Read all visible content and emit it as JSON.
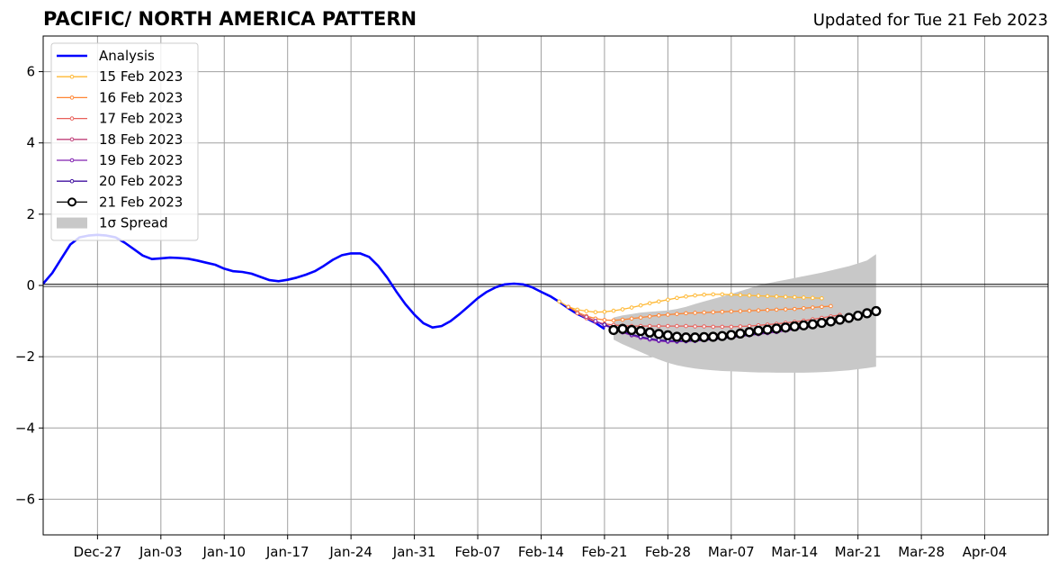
{
  "title": "PACIFIC/ NORTH AMERICA PATTERN",
  "subtitle": "Updated for Tue 21 Feb 2023",
  "chart_data": {
    "type": "line",
    "x_start": "2022-12-21",
    "xlim": [
      "2022-12-21",
      "2023-04-11"
    ],
    "ylim": [
      -7,
      7
    ],
    "grid": true,
    "legend_position": "top-left",
    "xticks": [
      "Dec-27",
      "Jan-03",
      "Jan-10",
      "Jan-17",
      "Jan-24",
      "Jan-31",
      "Feb-07",
      "Feb-14",
      "Feb-21",
      "Feb-28",
      "Mar-07",
      "Mar-14",
      "Mar-21",
      "Mar-28",
      "Apr-04"
    ],
    "yticks": [
      -6,
      -4,
      -2,
      0,
      2,
      4,
      6
    ],
    "ytick_labels": [
      "−6",
      "−4",
      "−2",
      "0",
      "2",
      "4",
      "6"
    ],
    "analysis": {
      "name": "Analysis",
      "color": "#0000ff",
      "points": [
        [
          "2022-12-21",
          0.05
        ],
        [
          "2022-12-22",
          0.35
        ],
        [
          "2022-12-23",
          0.75
        ],
        [
          "2022-12-24",
          1.15
        ],
        [
          "2022-12-25",
          1.35
        ],
        [
          "2022-12-26",
          1.4
        ],
        [
          "2022-12-27",
          1.42
        ],
        [
          "2022-12-28",
          1.4
        ],
        [
          "2022-12-29",
          1.35
        ],
        [
          "2022-12-30",
          1.2
        ],
        [
          "2022-12-31",
          1.02
        ],
        [
          "2023-01-01",
          0.84
        ],
        [
          "2023-01-02",
          0.74
        ],
        [
          "2023-01-03",
          0.76
        ],
        [
          "2023-01-04",
          0.78
        ],
        [
          "2023-01-05",
          0.77
        ],
        [
          "2023-01-06",
          0.75
        ],
        [
          "2023-01-07",
          0.7
        ],
        [
          "2023-01-08",
          0.64
        ],
        [
          "2023-01-09",
          0.58
        ],
        [
          "2023-01-10",
          0.47
        ],
        [
          "2023-01-11",
          0.4
        ],
        [
          "2023-01-12",
          0.38
        ],
        [
          "2023-01-13",
          0.33
        ],
        [
          "2023-01-14",
          0.24
        ],
        [
          "2023-01-15",
          0.15
        ],
        [
          "2023-01-16",
          0.12
        ],
        [
          "2023-01-17",
          0.16
        ],
        [
          "2023-01-18",
          0.22
        ],
        [
          "2023-01-19",
          0.3
        ],
        [
          "2023-01-20",
          0.4
        ],
        [
          "2023-01-21",
          0.55
        ],
        [
          "2023-01-22",
          0.72
        ],
        [
          "2023-01-23",
          0.85
        ],
        [
          "2023-01-24",
          0.9
        ],
        [
          "2023-01-25",
          0.9
        ],
        [
          "2023-01-26",
          0.8
        ],
        [
          "2023-01-27",
          0.55
        ],
        [
          "2023-01-28",
          0.22
        ],
        [
          "2023-01-29",
          -0.17
        ],
        [
          "2023-01-30",
          -0.52
        ],
        [
          "2023-01-31",
          -0.82
        ],
        [
          "2023-02-01",
          -1.06
        ],
        [
          "2023-02-02",
          -1.18
        ],
        [
          "2023-02-03",
          -1.14
        ],
        [
          "2023-02-04",
          -1.0
        ],
        [
          "2023-02-05",
          -0.8
        ],
        [
          "2023-02-06",
          -0.58
        ],
        [
          "2023-02-07",
          -0.36
        ],
        [
          "2023-02-08",
          -0.18
        ],
        [
          "2023-02-09",
          -0.05
        ],
        [
          "2023-02-10",
          0.03
        ],
        [
          "2023-02-11",
          0.05
        ],
        [
          "2023-02-12",
          0.03
        ],
        [
          "2023-02-13",
          -0.05
        ],
        [
          "2023-02-14",
          -0.18
        ],
        [
          "2023-02-15",
          -0.3
        ],
        [
          "2023-02-16",
          -0.46
        ],
        [
          "2023-02-17",
          -0.64
        ],
        [
          "2023-02-18",
          -0.8
        ],
        [
          "2023-02-19",
          -0.92
        ],
        [
          "2023-02-20",
          -1.05
        ],
        [
          "2023-02-21",
          -1.22
        ]
      ]
    },
    "forecasts": [
      {
        "name": "15 Feb 2023",
        "color": "#ffb833",
        "start": "2023-02-16",
        "values": [
          -0.45,
          -0.6,
          -0.68,
          -0.72,
          -0.75,
          -0.74,
          -0.71,
          -0.67,
          -0.62,
          -0.56,
          -0.5,
          -0.45,
          -0.4,
          -0.35,
          -0.31,
          -0.28,
          -0.26,
          -0.25,
          -0.25,
          -0.26,
          -0.27,
          -0.28,
          -0.29,
          -0.3,
          -0.31,
          -0.32,
          -0.33,
          -0.34,
          -0.35,
          -0.36
        ]
      },
      {
        "name": "16 Feb 2023",
        "color": "#ff8533",
        "start": "2023-02-17",
        "values": [
          -0.6,
          -0.75,
          -0.86,
          -0.93,
          -0.97,
          -0.98,
          -0.96,
          -0.93,
          -0.9,
          -0.87,
          -0.84,
          -0.82,
          -0.8,
          -0.78,
          -0.77,
          -0.76,
          -0.75,
          -0.74,
          -0.73,
          -0.72,
          -0.71,
          -0.7,
          -0.69,
          -0.68,
          -0.67,
          -0.66,
          -0.64,
          -0.62,
          -0.6,
          -0.58
        ]
      },
      {
        "name": "17 Feb 2023",
        "color": "#e8605a",
        "start": "2023-02-18",
        "values": [
          -0.78,
          -0.92,
          -1.02,
          -1.08,
          -1.11,
          -1.13,
          -1.14,
          -1.14,
          -1.14,
          -1.14,
          -1.14,
          -1.14,
          -1.14,
          -1.15,
          -1.15,
          -1.16,
          -1.16,
          -1.16,
          -1.15,
          -1.14,
          -1.12,
          -1.1,
          -1.08,
          -1.05,
          -1.02,
          -0.99,
          -0.95,
          -0.91,
          -0.87,
          -0.83
        ]
      },
      {
        "name": "18 Feb 2023",
        "color": "#c0407a",
        "start": "2023-02-19",
        "values": [
          -0.88,
          -1.0,
          -1.1,
          -1.18,
          -1.24,
          -1.29,
          -1.33,
          -1.36,
          -1.38,
          -1.39,
          -1.4,
          -1.4,
          -1.4,
          -1.39,
          -1.38,
          -1.36,
          -1.34,
          -1.32,
          -1.3,
          -1.28,
          -1.25,
          -1.22,
          -1.19,
          -1.16,
          -1.12,
          -1.08,
          -1.04,
          -0.99,
          -0.94,
          -0.89
        ]
      },
      {
        "name": "19 Feb 2023",
        "color": "#8020b0",
        "start": "2023-02-20",
        "values": [
          -1.0,
          -1.12,
          -1.22,
          -1.32,
          -1.4,
          -1.47,
          -1.52,
          -1.56,
          -1.58,
          -1.58,
          -1.57,
          -1.56,
          -1.54,
          -1.52,
          -1.49,
          -1.46,
          -1.43,
          -1.4,
          -1.37,
          -1.34,
          -1.31,
          -1.27,
          -1.23,
          -1.19,
          -1.15,
          -1.1,
          -1.05,
          -1.0,
          -0.95,
          -0.9
        ]
      },
      {
        "name": "20 Feb 2023",
        "color": "#4010a0",
        "start": "2023-02-21",
        "values": [
          -1.1,
          -1.2,
          -1.29,
          -1.37,
          -1.44,
          -1.49,
          -1.53,
          -1.55,
          -1.56,
          -1.56,
          -1.55,
          -1.53,
          -1.51,
          -1.48,
          -1.45,
          -1.42,
          -1.39,
          -1.35,
          -1.31,
          -1.27,
          -1.23,
          -1.19,
          -1.15,
          -1.1,
          -1.05,
          -1.0,
          -0.95,
          -0.9,
          -0.85,
          -0.8
        ]
      },
      {
        "name": "21 Feb 2023",
        "color": "#000000",
        "start": "2023-02-22",
        "values": [
          -1.25,
          -1.22,
          -1.25,
          -1.28,
          -1.32,
          -1.36,
          -1.4,
          -1.44,
          -1.46,
          -1.46,
          -1.45,
          -1.44,
          -1.42,
          -1.39,
          -1.35,
          -1.31,
          -1.27,
          -1.24,
          -1.21,
          -1.18,
          -1.15,
          -1.12,
          -1.09,
          -1.05,
          -1.01,
          -0.96,
          -0.91,
          -0.85,
          -0.78,
          -0.72
        ]
      }
    ],
    "spread": {
      "name": "1σ Spread",
      "color": "#c8c8c8",
      "start": "2023-02-22",
      "upper": [
        -0.9,
        -0.84,
        -0.8,
        -0.76,
        -0.74,
        -0.72,
        -0.7,
        -0.66,
        -0.6,
        -0.52,
        -0.45,
        -0.38,
        -0.31,
        -0.24,
        -0.16,
        -0.08,
        0.0,
        0.06,
        0.11,
        0.16,
        0.21,
        0.26,
        0.31,
        0.36,
        0.42,
        0.48,
        0.54,
        0.62,
        0.7,
        0.88
      ],
      "lower": [
        -1.52,
        -1.65,
        -1.76,
        -1.87,
        -1.98,
        -2.08,
        -2.17,
        -2.24,
        -2.29,
        -2.33,
        -2.36,
        -2.38,
        -2.4,
        -2.41,
        -2.42,
        -2.43,
        -2.44,
        -2.44,
        -2.45,
        -2.45,
        -2.45,
        -2.45,
        -2.44,
        -2.43,
        -2.42,
        -2.4,
        -2.38,
        -2.35,
        -2.32,
        -2.28
      ]
    }
  },
  "legend": [
    {
      "label": "Analysis",
      "color": "#0000ff",
      "style": "thick-line"
    },
    {
      "label": "15 Feb 2023",
      "color": "#ffb833",
      "style": "line-dot"
    },
    {
      "label": "16 Feb 2023",
      "color": "#ff8533",
      "style": "line-dot"
    },
    {
      "label": "17 Feb 2023",
      "color": "#e8605a",
      "style": "line-dot"
    },
    {
      "label": "18 Feb 2023",
      "color": "#c0407a",
      "style": "line-dot"
    },
    {
      "label": "19 Feb 2023",
      "color": "#8020b0",
      "style": "line-dot"
    },
    {
      "label": "20 Feb 2023",
      "color": "#4010a0",
      "style": "line-dot"
    },
    {
      "label": "21 Feb 2023",
      "color": "#000000",
      "style": "line-circle"
    },
    {
      "label": "1σ Spread",
      "color": "#c8c8c8",
      "style": "patch"
    }
  ]
}
